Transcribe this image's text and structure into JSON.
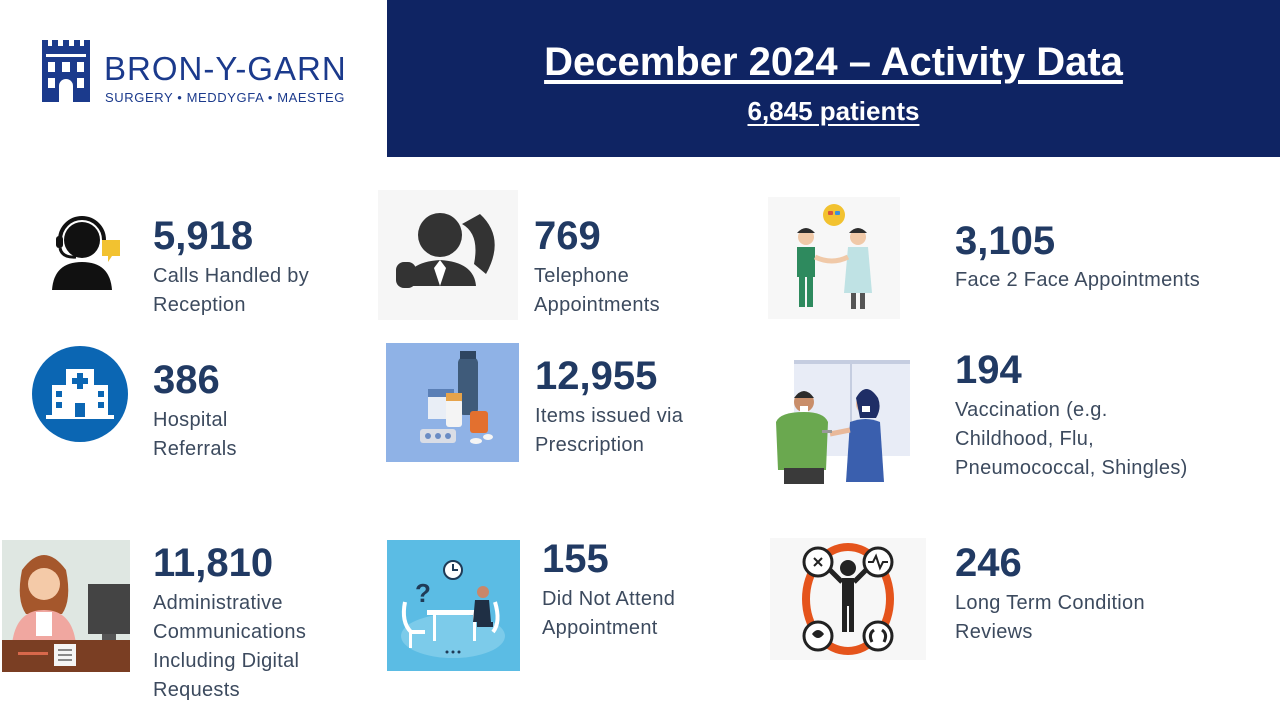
{
  "logo": {
    "name": "BRON-Y-GARN",
    "subtitle": "SURGERY • MEDDYGFA • MAESTEG"
  },
  "header": {
    "title": "December 2024 – Activity Data",
    "subtitle": "6,845 patients"
  },
  "colors": {
    "header_bg": "#0f2463",
    "stat_value": "#213a63",
    "stat_label": "#3c4a5e",
    "brand": "#1b3a8c"
  },
  "stats": [
    {
      "icon": "receptionist-headset-icon",
      "value": "5,918",
      "label": "Calls Handled by\nReception"
    },
    {
      "icon": "telephone-caller-icon",
      "value": "769",
      "label": "Telephone\nAppointments"
    },
    {
      "icon": "doctor-patient-handshake-icon",
      "value": "3,105",
      "label": "Face 2 Face Appointments"
    },
    {
      "icon": "hospital-building-icon",
      "value": "386",
      "label": "Hospital\nReferrals"
    },
    {
      "icon": "medication-bottles-icon",
      "value": "12,955",
      "label": "Items issued via\nPrescription"
    },
    {
      "icon": "vaccination-scene-icon",
      "value": "194",
      "label": "Vaccination (e.g.\nChildhood, Flu,\nPneumococcal, Shingles)"
    },
    {
      "icon": "administrator-desk-icon",
      "value": "11,810",
      "label": "Administrative\nCommunications\nIncluding Digital\nRequests"
    },
    {
      "icon": "empty-chair-question-icon",
      "value": "155",
      "label": "Did Not Attend\nAppointment"
    },
    {
      "icon": "long-term-conditions-ring-icon",
      "value": "246",
      "label": "Long Term Condition\nReviews"
    }
  ]
}
